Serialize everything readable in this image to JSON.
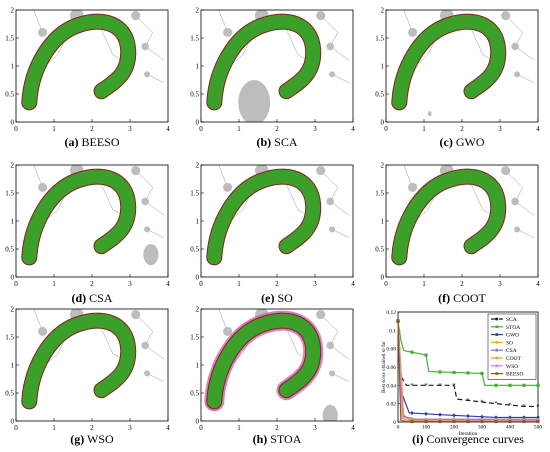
{
  "colors": {
    "background": "#ffffff",
    "path_green": "#3aa02a",
    "path_dark": "#8a1f1f",
    "path_pink": "#d26ab8",
    "obstacle": "#bdbdbd",
    "link": "#9a9a9a",
    "axes": "#000000"
  },
  "panels": [
    {
      "tag": "(a)",
      "name": "BEESO",
      "variant": "normal"
    },
    {
      "tag": "(b)",
      "name": "SCA",
      "variant": "sca"
    },
    {
      "tag": "(c)",
      "name": "GWO",
      "variant": "gwo"
    },
    {
      "tag": "(d)",
      "name": "CSA",
      "variant": "csa"
    },
    {
      "tag": "(e)",
      "name": "SO",
      "variant": "normal"
    },
    {
      "tag": "(f)",
      "name": "COOT",
      "variant": "normal"
    },
    {
      "tag": "(g)",
      "name": "WSO",
      "variant": "normal"
    },
    {
      "tag": "(h)",
      "name": "STOA",
      "variant": "stoa"
    }
  ],
  "convergence_caption": {
    "tag": "(i)",
    "name": "Convergence curves"
  },
  "chart_data": [
    {
      "type": "scatter",
      "description_title": "Workspace trajectory plots (panels a–h)",
      "xlim": [
        0,
        4
      ],
      "ylim": [
        0,
        2
      ],
      "xticks": [
        0,
        1,
        2,
        3,
        4
      ],
      "yticks": [
        0,
        0.5,
        1,
        1.5,
        2
      ],
      "ytick_labels": [
        "0",
        "0.5",
        "1",
        "1.5",
        "2"
      ],
      "obstacles": [
        {
          "x": 0.7,
          "y": 1.6,
          "r": 0.12
        },
        {
          "x": 1.6,
          "y": 1.9,
          "r": 0.18
        },
        {
          "x": 2.15,
          "y": 1.8,
          "r": 0.1
        },
        {
          "x": 3.15,
          "y": 1.9,
          "r": 0.12
        },
        {
          "x": 3.4,
          "y": 1.35,
          "r": 0.1
        },
        {
          "x": 3.45,
          "y": 0.85,
          "r": 0.08
        }
      ],
      "extra_obstacles": {
        "sca": [
          {
            "x": 1.4,
            "y": 0.35,
            "r": 0.42
          }
        ],
        "gwo": [
          {
            "x": 1.15,
            "y": 0.15,
            "r": 0.05
          }
        ],
        "csa": [
          {
            "x": 3.55,
            "y": 0.4,
            "r": 0.2
          }
        ],
        "stoa": [
          {
            "x": 3.4,
            "y": 0.1,
            "r": 0.2
          }
        ]
      }
    },
    {
      "type": "line",
      "title": "",
      "xlabel": "Iteration",
      "ylabel": "Best score obtained so far",
      "xlim": [
        0,
        500
      ],
      "ylim": [
        0,
        0.12
      ],
      "xticks": [
        0,
        100,
        200,
        300,
        400,
        500
      ],
      "yticks": [
        0,
        0.02,
        0.04,
        0.06,
        0.08,
        0.1,
        0.12
      ],
      "ytick_labels": [
        "0",
        "0.02",
        "0.04",
        "0.06",
        "0.08",
        "0.1",
        "0.12"
      ],
      "legend_position": "top-right",
      "series": [
        {
          "name": "SCA",
          "color": "#1a1a1a",
          "dash": "5,3",
          "marker": "star",
          "x": [
            0,
            10,
            30,
            200,
            210,
            350,
            450,
            500
          ],
          "values": [
            0.11,
            0.05,
            0.04,
            0.04,
            0.025,
            0.02,
            0.017,
            0.017
          ]
        },
        {
          "name": "STOA",
          "color": "#46b02e",
          "dash": "",
          "marker": "square",
          "x": [
            0,
            10,
            20,
            100,
            110,
            300,
            310,
            500
          ],
          "values": [
            0.11,
            0.09,
            0.078,
            0.073,
            0.055,
            0.053,
            0.04,
            0.04
          ]
        },
        {
          "name": "GWO",
          "color": "#2e3ea0",
          "dash": "",
          "marker": "diamond",
          "x": [
            0,
            15,
            40,
            150,
            350,
            500
          ],
          "values": [
            0.11,
            0.03,
            0.01,
            0.008,
            0.005,
            0.005
          ]
        },
        {
          "name": "SO",
          "color": "#e8b400",
          "dash": "",
          "marker": "none",
          "x": [
            0,
            15,
            40,
            200,
            500
          ],
          "values": [
            0.11,
            0.01,
            0.002,
            0.001,
            0.001
          ]
        },
        {
          "name": "CSA",
          "color": "#8a6fd2",
          "dash": "",
          "marker": "triangle",
          "x": [
            0,
            20,
            60,
            500
          ],
          "values": [
            0.11,
            0.006,
            0.003,
            0.003
          ]
        },
        {
          "name": "COOT",
          "color": "#e0a23a",
          "dash": "",
          "marker": "circle",
          "x": [
            0,
            20,
            60,
            500
          ],
          "values": [
            0.11,
            0.005,
            0.002,
            0.002
          ]
        },
        {
          "name": "WSO",
          "color": "#e47bd0",
          "dash": "",
          "marker": "none",
          "x": [
            0,
            15,
            40,
            500
          ],
          "values": [
            0.11,
            0.004,
            0.001,
            0.001
          ]
        },
        {
          "name": "BEESO",
          "color": "#8b5a2b",
          "dash": "",
          "marker": "square",
          "x": [
            0,
            10,
            30,
            500
          ],
          "values": [
            0.11,
            0.002,
            0.0005,
            0.0005
          ]
        }
      ]
    }
  ]
}
